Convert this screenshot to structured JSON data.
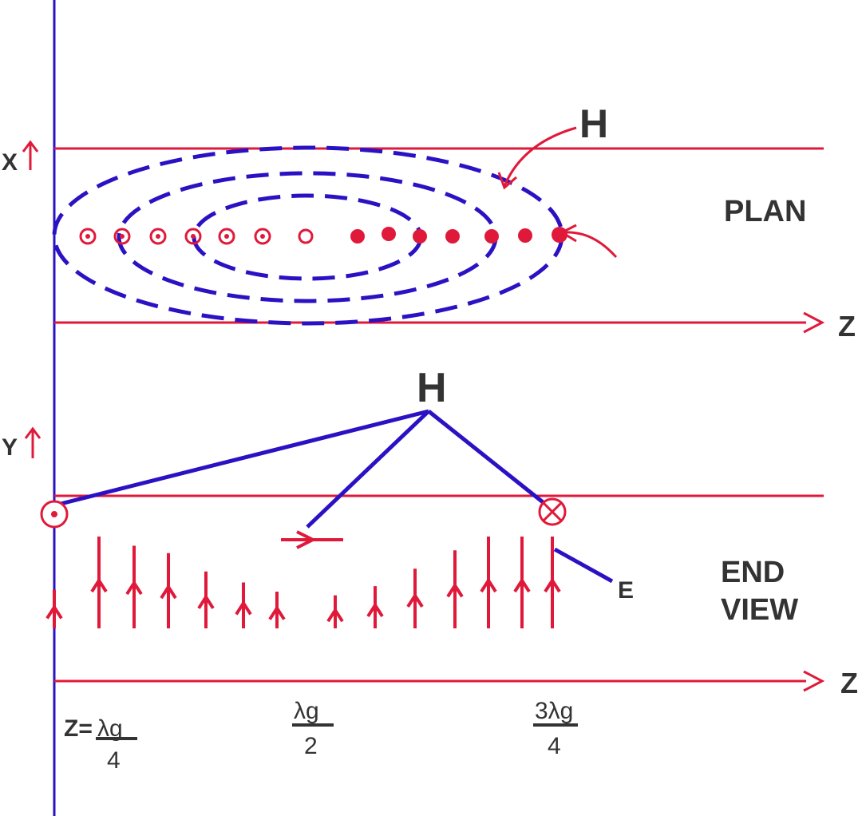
{
  "colors": {
    "red": "#e0193a",
    "blue": "#2a12c4",
    "text": "#333333"
  },
  "plan": {
    "x_label": "X",
    "h_label": "H",
    "section_label": "PLAN",
    "z_label": "Z"
  },
  "end_view": {
    "y_label": "Y",
    "h_label": "H",
    "e_label": "E",
    "section_label_line1": "END",
    "section_label_line2": "VIEW",
    "z_label": "Z"
  },
  "z_axis_ticks": {
    "t1_prefix": "Z=",
    "t1_num": "λg",
    "t1_den": "4",
    "t2_num": "λg",
    "t2_den": "2",
    "t3_num": "3λg",
    "t3_den": "4"
  },
  "plan_markers": {
    "open_dots": 7,
    "filled_dots": 7
  },
  "end_view_arrows": {
    "relative_lengths": [
      0.42,
      1.0,
      0.9,
      0.82,
      0.62,
      0.5,
      0.4,
      0.36,
      0.46,
      0.65,
      0.85,
      1.0,
      1.0,
      1.0,
      0.9
    ]
  }
}
